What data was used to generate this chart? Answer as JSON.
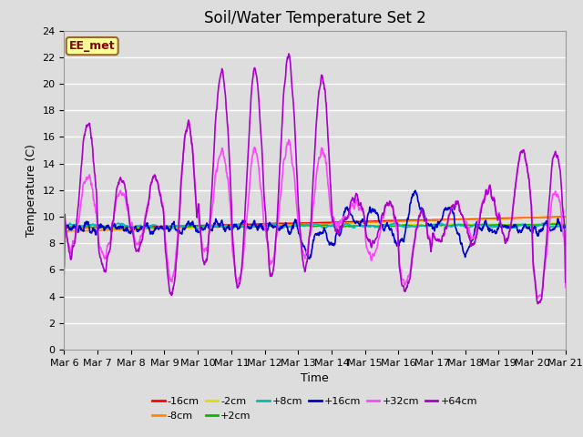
{
  "title": "Soil/Water Temperature Set 2",
  "xlabel": "Time",
  "ylabel": "Temperature (C)",
  "ylim": [
    0,
    24
  ],
  "x_tick_labels": [
    "Mar 6",
    "Mar 7",
    "Mar 8",
    "Mar 9",
    "Mar 10",
    "Mar 11",
    "Mar 12",
    "Mar 13",
    "Mar 14",
    "Mar 15",
    "Mar 16",
    "Mar 17",
    "Mar 18",
    "Mar 19",
    "Mar 20",
    "Mar 21"
  ],
  "annotation_text": "EE_met",
  "annotation_bg": "#ffff99",
  "annotation_border": "#996633",
  "annotation_text_color": "#880000",
  "series_order": [
    "-16cm",
    "-8cm",
    "-2cm",
    "+2cm",
    "+8cm",
    "+16cm",
    "+32cm",
    "+64cm"
  ],
  "series": {
    "-16cm": {
      "color": "#ff0000",
      "lw": 1.2
    },
    "-8cm": {
      "color": "#ff8800",
      "lw": 1.2
    },
    "-2cm": {
      "color": "#dddd00",
      "lw": 1.2
    },
    "+2cm": {
      "color": "#00bb00",
      "lw": 1.2
    },
    "+8cm": {
      "color": "#00bbbb",
      "lw": 1.2
    },
    "+16cm": {
      "color": "#0000cc",
      "lw": 1.2
    },
    "+32cm": {
      "color": "#ff44ff",
      "lw": 1.2
    },
    "+64cm": {
      "color": "#aa00cc",
      "lw": 1.2
    }
  },
  "bg_color": "#dddddd",
  "plot_bg_color": "#dddddd",
  "grid_color": "#ffffff",
  "title_fontsize": 12,
  "tick_fontsize": 8,
  "label_fontsize": 9
}
